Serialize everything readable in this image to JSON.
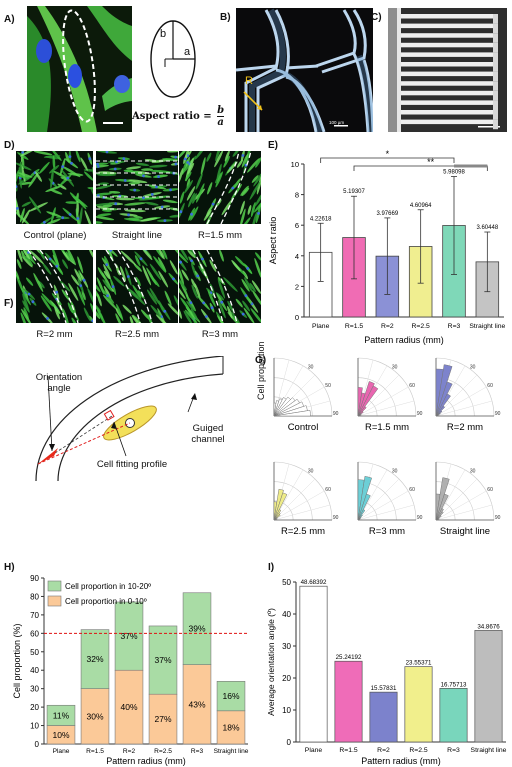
{
  "panel_labels": {
    "a": "A)",
    "b": "B)",
    "c": "C)",
    "d": "D)",
    "e": "E)",
    "f": "F)",
    "g": "G)",
    "h": "H)",
    "i": "I)"
  },
  "panel_a": {
    "b_label": "b",
    "a_label": "a",
    "formula_prefix": "Aspect ratio =",
    "formula_num": "b",
    "formula_den": "a"
  },
  "panel_b": {
    "r_label": "R",
    "scale_text": "100 µm"
  },
  "panel_d": {
    "captions": [
      "Control (plane)",
      "Straight line",
      "R=1.5 mm",
      "R=2 mm",
      "R=2.5 mm",
      "R=3 mm"
    ]
  },
  "panel_f": {
    "orientation_label": "Orientation angle",
    "profile_label": "Cell fitting profile",
    "channel_label": "Guiged channel"
  },
  "panel_g": {
    "ylabel": "Cell proportion",
    "plots": [
      {
        "label": "Control",
        "color": "#ffffff",
        "ticks": [
          "30",
          "50",
          "90"
        ],
        "bars": [
          10,
          12,
          14,
          16,
          18,
          20,
          22,
          24,
          26,
          28
        ]
      },
      {
        "label": "R=1.5 mm",
        "color": "#e866b0",
        "ticks": [
          "30",
          "60",
          "90"
        ],
        "bars": [
          22,
          18,
          28,
          26,
          9,
          5,
          3,
          2,
          1,
          1
        ]
      },
      {
        "label": "R=2 mm",
        "color": "#7d83cc",
        "ticks": [
          "30",
          "60",
          "90"
        ],
        "bars": [
          38,
          42,
          29,
          20,
          10,
          6,
          4,
          2,
          1,
          1
        ]
      },
      {
        "label": "R=2.5 mm",
        "color": "#eeeb88",
        "ticks": [
          "30",
          "60",
          "90"
        ],
        "bars": [
          14,
          24,
          22,
          9,
          7,
          6,
          3,
          2,
          2,
          1
        ]
      },
      {
        "label": "R=3 mm",
        "color": "#6ccfd6",
        "ticks": [
          "30",
          "60",
          "90"
        ],
        "bars": [
          31,
          34,
          21,
          9,
          5,
          3,
          2,
          1,
          1,
          1
        ]
      },
      {
        "label": "Straight line",
        "color": "#b0b0b0",
        "ticks": [
          "30",
          "60",
          "90"
        ],
        "bars": [
          20,
          33,
          21,
          10,
          8,
          5,
          3,
          2,
          2,
          1
        ]
      }
    ]
  },
  "chart_data": [
    {
      "type": "bar",
      "panel": "E",
      "categories": [
        "Plane",
        "R=1.5",
        "R=2",
        "R=2.5",
        "R=3",
        "Straight line"
      ],
      "values": [
        4.22618,
        5.19307,
        3.97669,
        4.60964,
        5.98098,
        3.60448
      ],
      "errors": [
        1.9,
        2.7,
        2.5,
        2.4,
        3.2,
        1.95
      ],
      "value_labels": [
        "4.22618",
        "5.19307",
        "3.97669",
        "4.60964",
        "5.98098",
        "3.60448"
      ],
      "colors": [
        "#ffffff",
        "#f06cb4",
        "#8b91d6",
        "#f0ee90",
        "#7fd8b8",
        "#c4c4c4"
      ],
      "xlabel": "Pattern radius (mm)",
      "ylabel": "Aspect ratio",
      "ylim": [
        0,
        10
      ],
      "yticks": [
        "0",
        "2",
        "4",
        "6",
        "8",
        "10"
      ],
      "significance": [
        "*",
        "**"
      ]
    },
    {
      "type": "bar",
      "panel": "H",
      "stacked": true,
      "categories": [
        "Plane",
        "R=1.5",
        "R=2",
        "R=2.5",
        "R=3",
        "Straight line"
      ],
      "series": [
        {
          "name": "Cell proportion in 0-10º",
          "values": [
            10,
            30,
            40,
            27,
            43,
            18
          ],
          "labels": [
            "10%",
            "30%",
            "40%",
            "27%",
            "43%",
            "18%"
          ],
          "color": "#fbc998"
        },
        {
          "name": "Cell proportion in 10-20º",
          "values": [
            11,
            32,
            37,
            37,
            39,
            16
          ],
          "labels": [
            "11%",
            "32%",
            "37%",
            "37%",
            "39%",
            "16%"
          ],
          "color": "#a9dca5"
        }
      ],
      "threshold": 60,
      "xlabel": "Pattern radius (mm)",
      "ylabel": "Cell proportion (%)",
      "ylim": [
        0,
        90
      ],
      "yticks": [
        "0",
        "10",
        "20",
        "30",
        "40",
        "50",
        "60",
        "70",
        "80",
        "90"
      ],
      "legend": "top-left"
    },
    {
      "type": "bar",
      "panel": "I",
      "categories": [
        "Plane",
        "R=1.5",
        "R=2",
        "R=2.5",
        "R=3",
        "Straight line"
      ],
      "values": [
        48.68392,
        25.24192,
        15.57831,
        23.55371,
        16.75713,
        34.8676
      ],
      "value_labels": [
        "48.68392",
        "25.24192",
        "15.57831",
        "23.55371",
        "16.75713",
        "34.8676"
      ],
      "colors": [
        "#ffffff",
        "#ef6cb8",
        "#7c82cc",
        "#f1ef8c",
        "#79d6bc",
        "#bdbdbd"
      ],
      "xlabel": "Pattern radius (mm)",
      "ylabel": "Average orientation angle (º)",
      "ylim": [
        0,
        50
      ],
      "yticks": [
        "0",
        "10",
        "20",
        "30",
        "40",
        "50"
      ]
    }
  ]
}
